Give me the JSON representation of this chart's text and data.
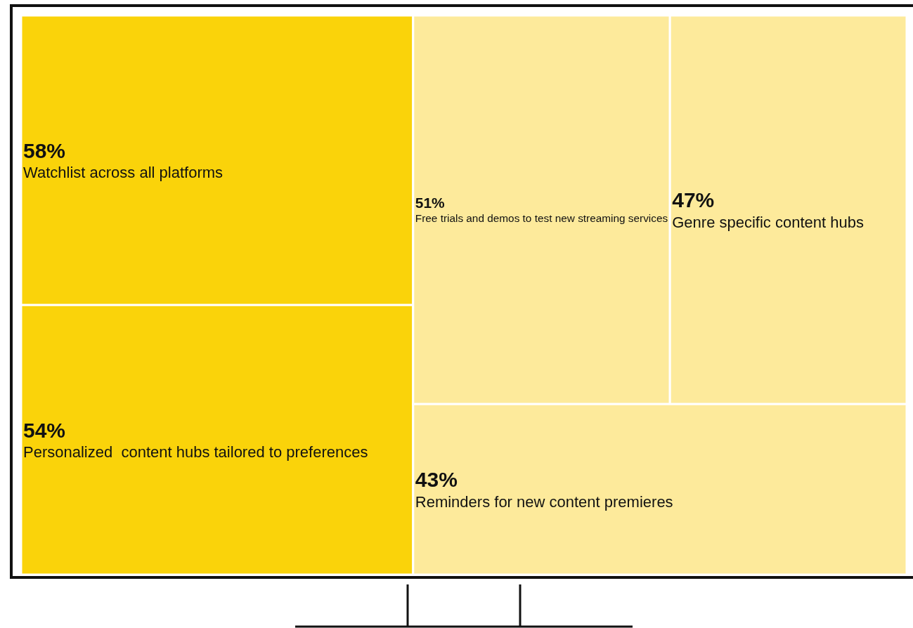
{
  "chart_data": {
    "type": "other",
    "categories": [
      "Watchlist across all platforms",
      "Personalized  content hubs tailored to preferences",
      "Free trials and demos to test new streaming services",
      "Genre specific content hubs",
      "Reminders for new content premieres"
    ],
    "values": [
      58,
      54,
      51,
      47,
      43
    ],
    "value_labels": [
      "58%",
      "54%",
      "51%",
      "47%",
      "43%"
    ],
    "colors": [
      "#fad30a",
      "#fad30a",
      "#fdea9b",
      "#fdea9b",
      "#fdea9b"
    ]
  }
}
